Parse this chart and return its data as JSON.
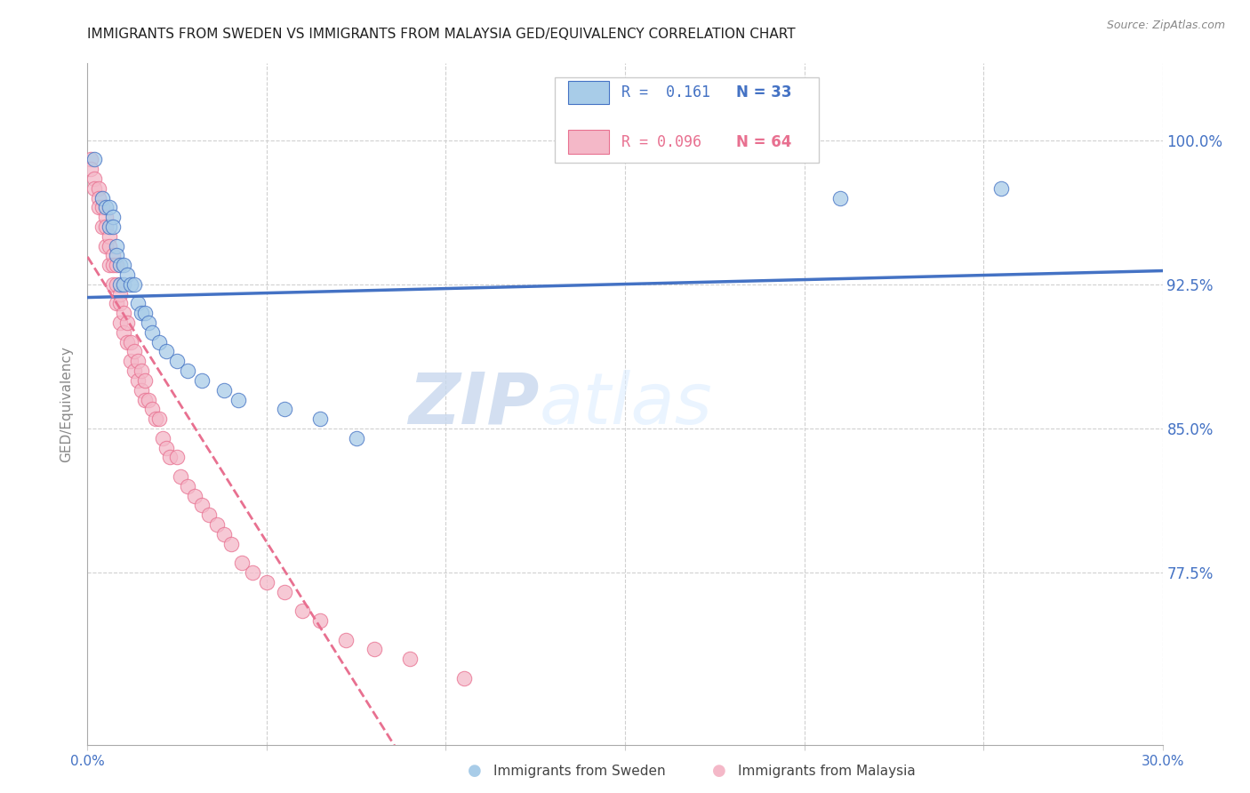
{
  "title": "IMMIGRANTS FROM SWEDEN VS IMMIGRANTS FROM MALAYSIA GED/EQUIVALENCY CORRELATION CHART",
  "source": "Source: ZipAtlas.com",
  "ylabel": "GED/Equivalency",
  "ytick_labels": [
    "100.0%",
    "92.5%",
    "85.0%",
    "77.5%"
  ],
  "ytick_values": [
    1.0,
    0.925,
    0.85,
    0.775
  ],
  "xlim": [
    0.0,
    0.3
  ],
  "ylim": [
    0.685,
    1.04
  ],
  "legend_r_sweden": "R =  0.161",
  "legend_n_sweden": "N = 33",
  "legend_r_malaysia": "R = 0.096",
  "legend_n_malaysia": "N = 64",
  "legend_label_sweden": "Immigrants from Sweden",
  "legend_label_malaysia": "Immigrants from Malaysia",
  "color_sweden": "#a8cce8",
  "color_malaysia": "#f4b8c8",
  "color_sweden_line": "#4472C4",
  "color_malaysia_line": "#e87090",
  "watermark_zip": "ZIP",
  "watermark_atlas": "atlas",
  "sweden_x": [
    0.002,
    0.004,
    0.005,
    0.006,
    0.006,
    0.007,
    0.007,
    0.008,
    0.008,
    0.009,
    0.009,
    0.01,
    0.01,
    0.011,
    0.012,
    0.013,
    0.014,
    0.015,
    0.016,
    0.017,
    0.018,
    0.02,
    0.022,
    0.025,
    0.028,
    0.032,
    0.038,
    0.042,
    0.055,
    0.065,
    0.075,
    0.21,
    0.255
  ],
  "sweden_y": [
    0.99,
    0.97,
    0.965,
    0.965,
    0.955,
    0.96,
    0.955,
    0.945,
    0.94,
    0.935,
    0.925,
    0.935,
    0.925,
    0.93,
    0.925,
    0.925,
    0.915,
    0.91,
    0.91,
    0.905,
    0.9,
    0.895,
    0.89,
    0.885,
    0.88,
    0.875,
    0.87,
    0.865,
    0.86,
    0.855,
    0.845,
    0.97,
    0.975
  ],
  "malaysia_x": [
    0.001,
    0.001,
    0.002,
    0.002,
    0.003,
    0.003,
    0.003,
    0.004,
    0.004,
    0.005,
    0.005,
    0.005,
    0.006,
    0.006,
    0.006,
    0.007,
    0.007,
    0.007,
    0.008,
    0.008,
    0.008,
    0.009,
    0.009,
    0.009,
    0.01,
    0.01,
    0.011,
    0.011,
    0.012,
    0.012,
    0.013,
    0.013,
    0.014,
    0.014,
    0.015,
    0.015,
    0.016,
    0.016,
    0.017,
    0.018,
    0.019,
    0.02,
    0.021,
    0.022,
    0.023,
    0.025,
    0.026,
    0.028,
    0.03,
    0.032,
    0.034,
    0.036,
    0.038,
    0.04,
    0.043,
    0.046,
    0.05,
    0.055,
    0.06,
    0.065,
    0.072,
    0.08,
    0.09,
    0.105
  ],
  "malaysia_y": [
    0.99,
    0.985,
    0.98,
    0.975,
    0.975,
    0.97,
    0.965,
    0.965,
    0.955,
    0.96,
    0.955,
    0.945,
    0.95,
    0.945,
    0.935,
    0.94,
    0.935,
    0.925,
    0.935,
    0.925,
    0.915,
    0.92,
    0.915,
    0.905,
    0.91,
    0.9,
    0.905,
    0.895,
    0.895,
    0.885,
    0.89,
    0.88,
    0.885,
    0.875,
    0.88,
    0.87,
    0.875,
    0.865,
    0.865,
    0.86,
    0.855,
    0.855,
    0.845,
    0.84,
    0.835,
    0.835,
    0.825,
    0.82,
    0.815,
    0.81,
    0.805,
    0.8,
    0.795,
    0.79,
    0.78,
    0.775,
    0.77,
    0.765,
    0.755,
    0.75,
    0.74,
    0.735,
    0.73,
    0.72
  ]
}
